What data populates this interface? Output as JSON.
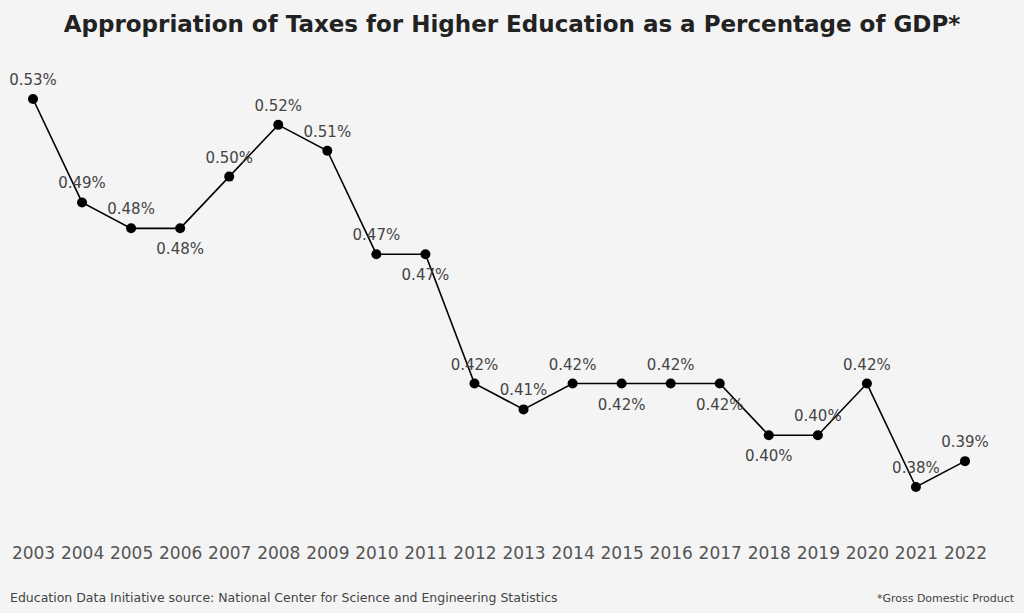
{
  "chart_data": {
    "type": "line",
    "title": "Appropriation of Taxes for Higher Education as a Percentage of GDP*",
    "annotations": [
      "Education Data Initiative source: National Center for Science and Engineering Statistics",
      "*Gross Domestic Product"
    ],
    "categories": [
      "2003",
      "2004",
      "2005",
      "2006",
      "2007",
      "2008",
      "2009",
      "2010",
      "2011",
      "2012",
      "2013",
      "2014",
      "2015",
      "2016",
      "2017",
      "2018",
      "2019",
      "2020",
      "2021",
      "2022"
    ],
    "values": [
      0.53,
      0.49,
      0.48,
      0.48,
      0.5,
      0.52,
      0.51,
      0.47,
      0.47,
      0.42,
      0.41,
      0.42,
      0.42,
      0.42,
      0.42,
      0.4,
      0.4,
      0.42,
      0.38,
      0.39
    ],
    "value_labels": [
      "0.53%",
      "0.49%",
      "0.48%",
      "0.48%",
      "0.50%",
      "0.52%",
      "0.51%",
      "0.47%",
      "0.47%",
      "0.42%",
      "0.41%",
      "0.42%",
      "0.42%",
      "0.42%",
      "0.42%",
      "0.40%",
      "0.40%",
      "0.42%",
      "0.38%",
      "0.39%"
    ],
    "color": "#000000",
    "marker": "circle",
    "line_style": "solid",
    "data_labels": true,
    "tick_labels": "x",
    "grid": false
  }
}
